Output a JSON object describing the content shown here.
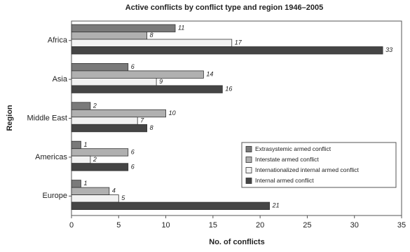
{
  "chart_data": {
    "type": "bar",
    "orientation": "horizontal",
    "title": "Active conflicts by conflict type and region 1946–2005",
    "x_label": "No. of conflicts",
    "y_label": "Region",
    "categories": [
      "Africa",
      "Asia",
      "Middle East",
      "Americas",
      "Europe"
    ],
    "series": [
      {
        "name": "Extrasystemic armed conflict",
        "color": "#7a7a7a",
        "values": [
          11,
          6,
          2,
          1,
          1
        ]
      },
      {
        "name": "Interstate armed conflict",
        "color": "#b0b0b0",
        "values": [
          8,
          14,
          10,
          6,
          4
        ]
      },
      {
        "name": "Internationalized internal armed conflict",
        "color": "#f2f2f2",
        "values": [
          17,
          9,
          7,
          2,
          5
        ]
      },
      {
        "name": "Internal armed conflict",
        "color": "#454545",
        "values": [
          33,
          16,
          8,
          6,
          21
        ]
      }
    ],
    "xlim": [
      0,
      35
    ],
    "xticks": [
      0,
      5,
      10,
      15,
      20,
      25,
      30,
      35
    ],
    "legend": "lower right"
  }
}
